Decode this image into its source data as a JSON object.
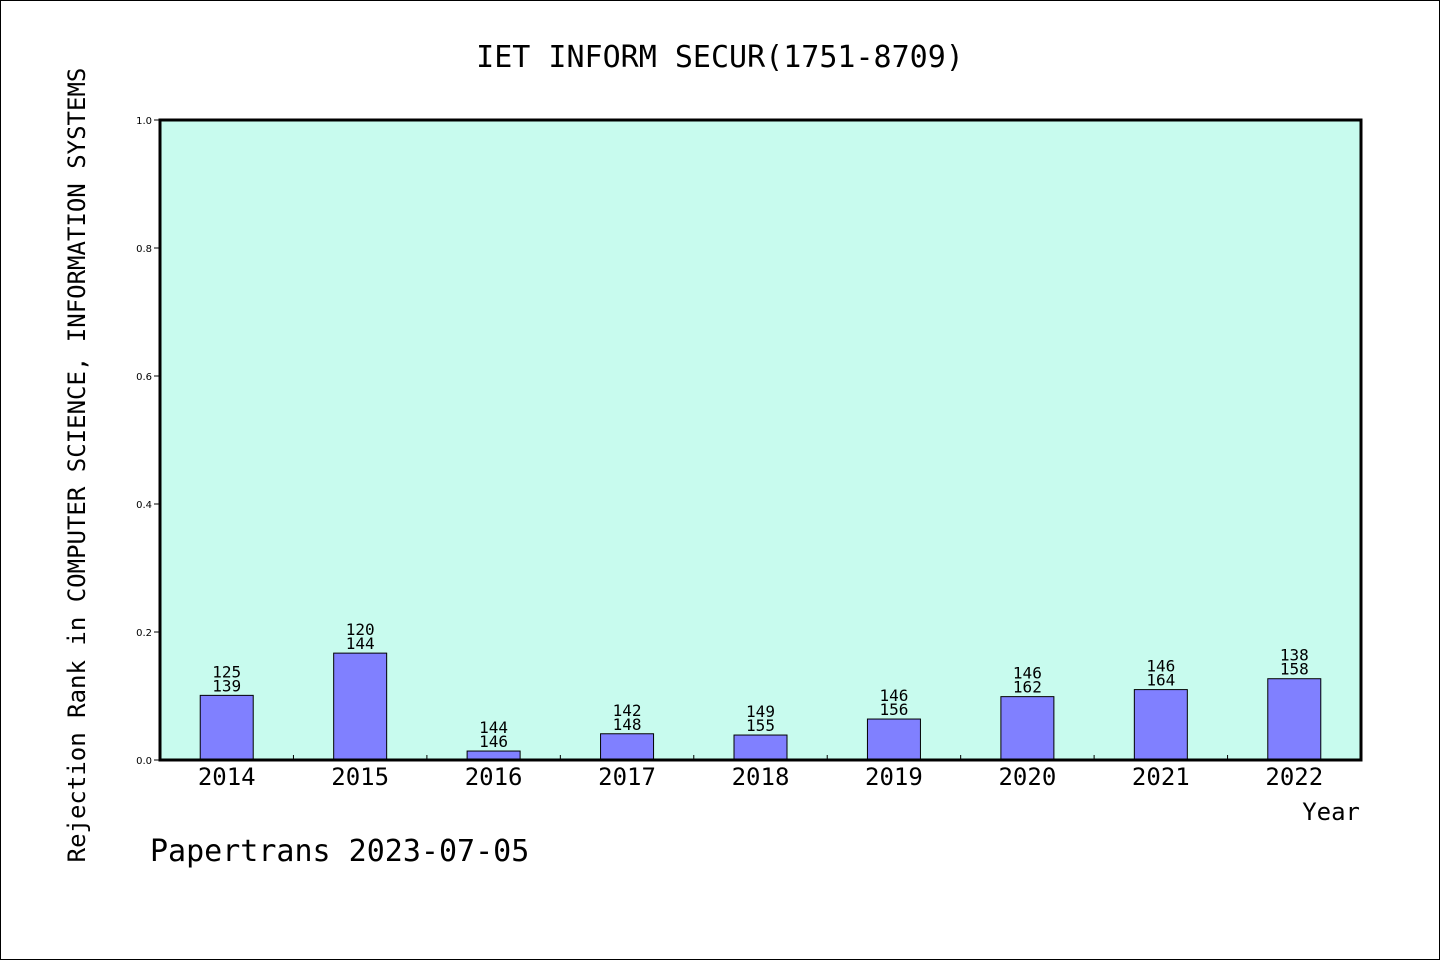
{
  "chart_data": {
    "type": "bar",
    "title": "IET INFORM SECUR(1751-8709)",
    "ylabel": "Rejection Rank in COMPUTER SCIENCE, INFORMATION SYSTEMS",
    "xlabel": "Year",
    "ylim": [
      0,
      1.0
    ],
    "yticks": [
      "0.0",
      "0.2",
      "0.4",
      "0.6",
      "0.8",
      "1.0"
    ],
    "categories": [
      "2014",
      "2015",
      "2016",
      "2017",
      "2018",
      "2019",
      "2020",
      "2021",
      "2022"
    ],
    "values": [
      0.101,
      0.167,
      0.014,
      0.041,
      0.039,
      0.064,
      0.099,
      0.11,
      0.127
    ],
    "labels": [
      [
        "125",
        "139"
      ],
      [
        "120",
        "144"
      ],
      [
        "144",
        "146"
      ],
      [
        "142",
        "148"
      ],
      [
        "149",
        "155"
      ],
      [
        "146",
        "156"
      ],
      [
        "146",
        "162"
      ],
      [
        "146",
        "164"
      ],
      [
        "138",
        "158"
      ]
    ],
    "grid": false,
    "colors": {
      "plot_bg": "#c8fbee",
      "bar": "#8080ff"
    }
  },
  "footer": "Papertrans 2023-07-05"
}
